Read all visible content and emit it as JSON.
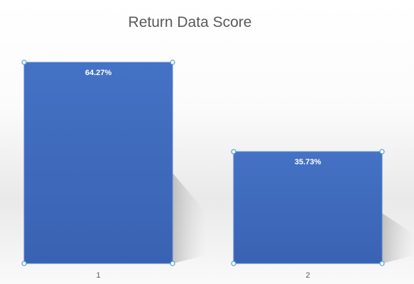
{
  "chart_data": {
    "type": "bar",
    "title": "Return Data Score",
    "categories": [
      "1",
      "2"
    ],
    "values": [
      64.27,
      35.73
    ],
    "data_labels": [
      "64.27%",
      "35.73%"
    ],
    "xlabel": "",
    "ylabel": "",
    "ylim": [
      0,
      64.27
    ],
    "grid": false,
    "legend": "none",
    "bar_color": "#3f6cc4",
    "label_color": "#ffffff"
  }
}
